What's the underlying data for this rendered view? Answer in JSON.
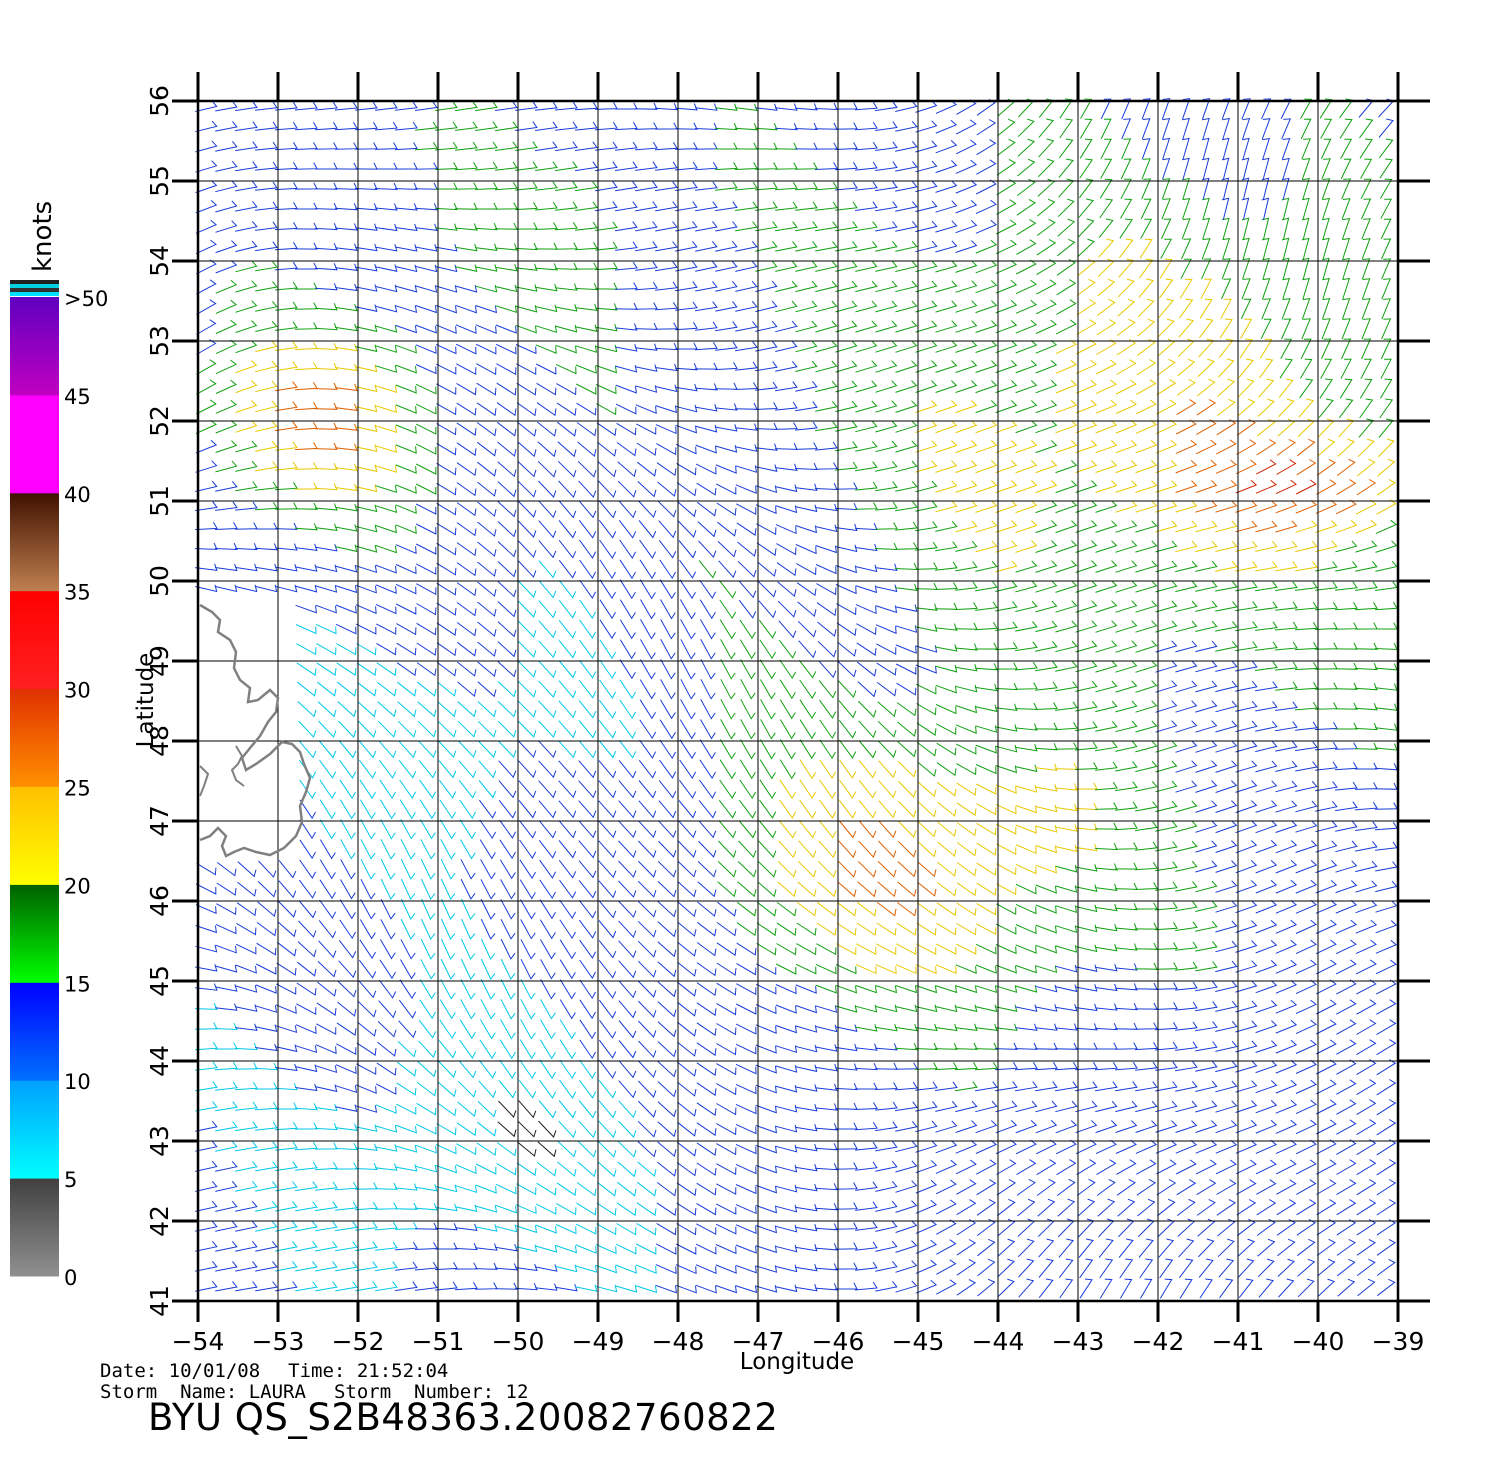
{
  "map": {
    "lon_range": [
      -54,
      -39
    ],
    "lat_range": [
      41,
      56
    ],
    "lon_ticks": [
      "−54",
      "−53",
      "−52",
      "−51",
      "−50",
      "−49",
      "−48",
      "−47",
      "−46",
      "−45",
      "−44",
      "−43",
      "−42",
      "−41",
      "−40",
      "−39"
    ],
    "lat_ticks": [
      "41",
      "42",
      "43",
      "44",
      "45",
      "46",
      "47",
      "48",
      "49",
      "50",
      "51",
      "52",
      "53",
      "54",
      "55",
      "56"
    ],
    "xlabel": "Longitude",
    "ylabel": "Latitude",
    "grid": true,
    "coastline_color": "#808080",
    "wind_field_note_colors": {
      "calm": "#000000",
      "light": "#00c8e6",
      "moderate": "#1a3cd8",
      "fresh": "#10a010",
      "strong": "#e8c800",
      "gale": "#e06000"
    }
  },
  "legend": {
    "units": "knots",
    "labels": [
      "0",
      "5",
      "10",
      "15",
      "20",
      "25",
      "30",
      "35",
      "40",
      "45",
      ">50"
    ],
    "bands": [
      {
        "from": 0,
        "to": 5,
        "top": "#404040",
        "bottom": "#909090"
      },
      {
        "from": 5,
        "to": 10,
        "top": "#00a0ff",
        "bottom": "#00ffff"
      },
      {
        "from": 10,
        "to": 15,
        "top": "#0000ff",
        "bottom": "#0070ff"
      },
      {
        "from": 15,
        "to": 20,
        "top": "#006000",
        "bottom": "#00ff00"
      },
      {
        "from": 20,
        "to": 25,
        "top": "#ffc000",
        "bottom": "#ffff00"
      },
      {
        "from": 25,
        "to": 30,
        "top": "#e03000",
        "bottom": "#ff9000"
      },
      {
        "from": 30,
        "to": 35,
        "top": "#ff0000",
        "bottom": "#ff2020"
      },
      {
        "from": 35,
        "to": 40,
        "top": "#401000",
        "bottom": "#c08050"
      },
      {
        "from": 40,
        "to": 45,
        "top": "#ff00ff",
        "bottom": "#ff00ff"
      },
      {
        "from": 45,
        "to": 50,
        "top": "#6000c0",
        "bottom": "#c000c0"
      }
    ],
    "overflow_colors": [
      "#202020",
      "#00d0e0",
      "#303030",
      "#00e0ff"
    ]
  },
  "info": {
    "date_label": "Date:",
    "date": "10/01/08",
    "time_label": "Time:",
    "time": "21:52:04",
    "storm_name_label": "Storm  Name:",
    "storm_name": "LAURA",
    "storm_number_label": "Storm  Number:",
    "storm_number": "12"
  },
  "title": "BYU  QS_S2B48363.20082760822"
}
